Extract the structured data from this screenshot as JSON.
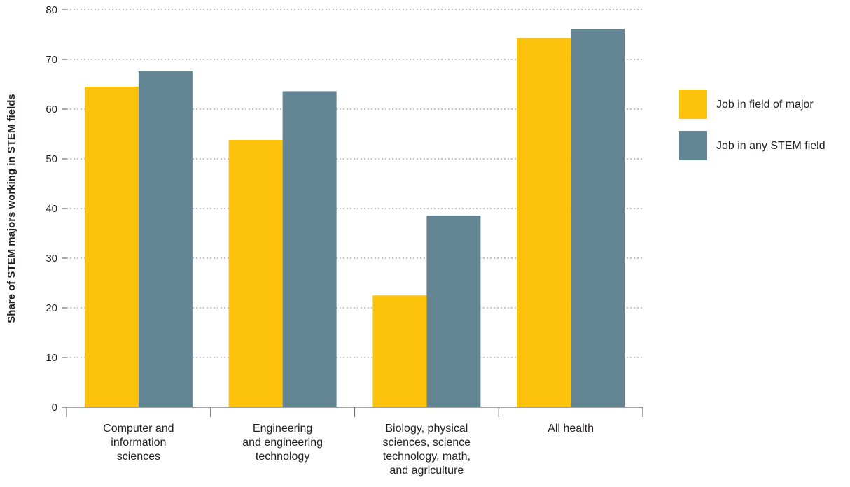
{
  "chart_data": {
    "type": "bar",
    "title": "",
    "xlabel": "",
    "ylabel": "Share of STEM majors working in STEM fields",
    "ylim": [
      0,
      80
    ],
    "yticks": [
      0,
      10,
      20,
      30,
      40,
      50,
      60,
      70,
      80
    ],
    "grid": true,
    "legend_position": "right",
    "categories": [
      [
        "Computer and",
        "information",
        "sciences"
      ],
      [
        "Engineering",
        "and engineering",
        "technology"
      ],
      [
        "Biology, physical",
        "sciences, science",
        "technology, math,",
        "and agriculture"
      ],
      [
        "All health"
      ]
    ],
    "series": [
      {
        "name": "Job in field of major",
        "color": "#fdc30c",
        "values": [
          64.5,
          53.8,
          22.5,
          74.3
        ]
      },
      {
        "name": "Job in any STEM field",
        "color": "#638593",
        "values": [
          67.6,
          63.6,
          38.6,
          76.1
        ]
      }
    ]
  }
}
